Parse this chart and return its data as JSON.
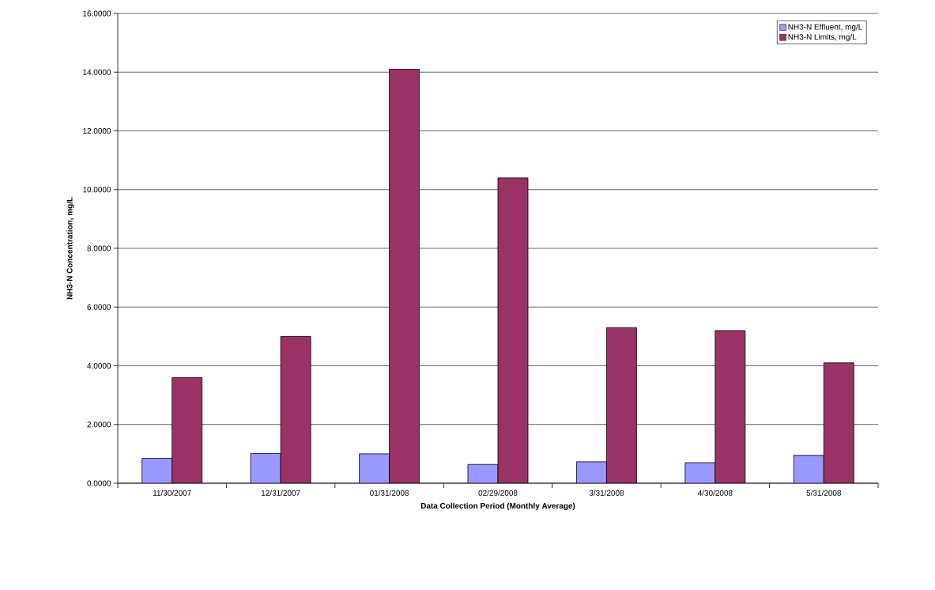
{
  "chart_data": {
    "type": "bar",
    "xlabel": "Data Collection Period (Monthly Average)",
    "ylabel": "NH3-N Concentration, mg/L",
    "categories": [
      "11/30/2007",
      "12/31/2007",
      "01/31/2008",
      "02/29/2008",
      "3/31/2008",
      "4/30/2008",
      "5/31/2008"
    ],
    "series": [
      {
        "name": "NH3-N Effluent, mg/L",
        "color": "#9999ff",
        "values": [
          0.85,
          1.01,
          1.0,
          0.64,
          0.73,
          0.7,
          0.95
        ]
      },
      {
        "name": "NH3-N Limits, mg/L",
        "color": "#993366",
        "values": [
          3.6,
          5.0,
          14.1,
          10.4,
          5.3,
          5.2,
          4.1
        ]
      }
    ],
    "ylim": [
      0,
      16
    ],
    "yticks": [
      {
        "value": 0,
        "label": "0.0000"
      },
      {
        "value": 2,
        "label": "2.0000"
      },
      {
        "value": 4,
        "label": "4.0000"
      },
      {
        "value": 6,
        "label": "6.0000"
      },
      {
        "value": 8,
        "label": "8.0000"
      },
      {
        "value": 10,
        "label": "10.0000"
      },
      {
        "value": 12,
        "label": "12.0000"
      },
      {
        "value": 14,
        "label": "14.0000"
      },
      {
        "value": 16,
        "label": "16.0000"
      }
    ],
    "grid": "y",
    "legend": "top right"
  }
}
